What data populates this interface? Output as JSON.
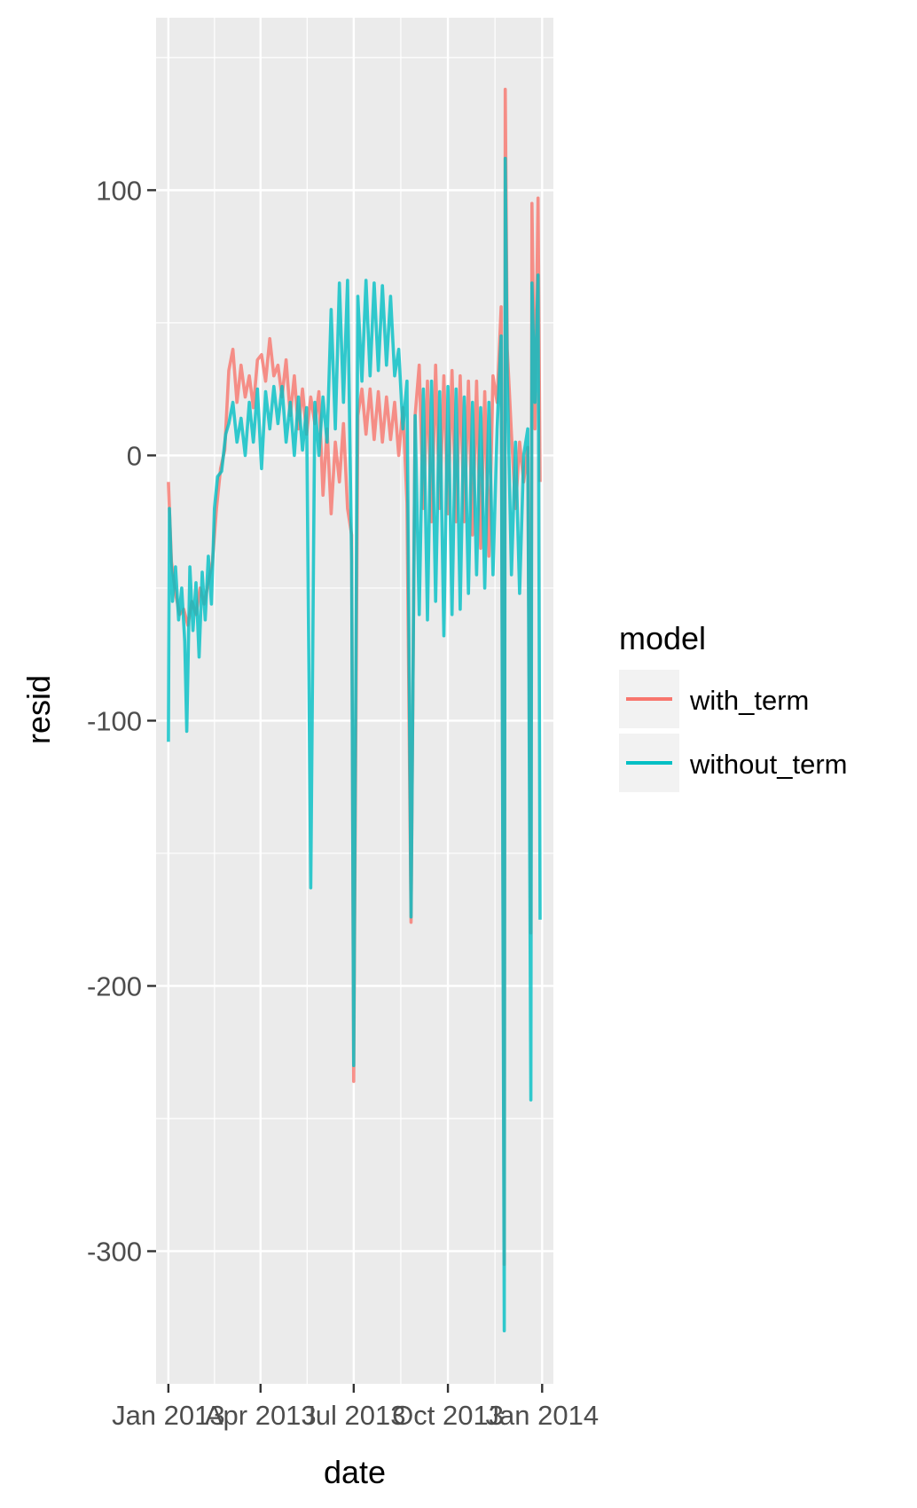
{
  "chart_data": {
    "type": "line",
    "xlabel": "date",
    "ylabel": "resid",
    "x_tick_labels": [
      "Jan 2013",
      "Apr 2013",
      "Jul 2013",
      "Oct 2013",
      "Jan 2014"
    ],
    "x_ticks": [
      "2013-01-01",
      "2013-04-01",
      "2013-07-01",
      "2013-10-01",
      "2014-01-01"
    ],
    "xlim": [
      "2012-12-20",
      "2014-01-12"
    ],
    "y_tick_labels": [
      "100",
      "0",
      "-100",
      "-200",
      "-300"
    ],
    "y_ticks": [
      100,
      0,
      -100,
      -200,
      -300
    ],
    "ylim": [
      -350,
      165
    ],
    "grid": true,
    "legend": {
      "title": "model",
      "position": "right"
    },
    "series": [
      {
        "name": "with_term",
        "color": "#F8766D",
        "points": [
          [
            "2013-01-01",
            -10
          ],
          [
            "2013-01-04",
            -40
          ],
          [
            "2013-01-08",
            -52
          ],
          [
            "2013-01-12",
            -60
          ],
          [
            "2013-01-16",
            -58
          ],
          [
            "2013-01-20",
            -64
          ],
          [
            "2013-01-24",
            -55
          ],
          [
            "2013-01-28",
            -60
          ],
          [
            "2013-02-01",
            -50
          ],
          [
            "2013-02-05",
            -56
          ],
          [
            "2013-02-09",
            -48
          ],
          [
            "2013-02-13",
            -40
          ],
          [
            "2013-02-17",
            -20
          ],
          [
            "2013-02-21",
            -5
          ],
          [
            "2013-02-25",
            2
          ],
          [
            "2013-03-01",
            32
          ],
          [
            "2013-03-05",
            40
          ],
          [
            "2013-03-09",
            20
          ],
          [
            "2013-03-13",
            34
          ],
          [
            "2013-03-17",
            22
          ],
          [
            "2013-03-21",
            30
          ],
          [
            "2013-03-25",
            18
          ],
          [
            "2013-03-29",
            36
          ],
          [
            "2013-04-02",
            38
          ],
          [
            "2013-04-06",
            28
          ],
          [
            "2013-04-10",
            44
          ],
          [
            "2013-04-14",
            30
          ],
          [
            "2013-04-18",
            34
          ],
          [
            "2013-04-22",
            22
          ],
          [
            "2013-04-26",
            36
          ],
          [
            "2013-04-30",
            15
          ],
          [
            "2013-05-04",
            30
          ],
          [
            "2013-05-08",
            10
          ],
          [
            "2013-05-12",
            25
          ],
          [
            "2013-05-16",
            8
          ],
          [
            "2013-05-20",
            22
          ],
          [
            "2013-05-24",
            12
          ],
          [
            "2013-05-28",
            24
          ],
          [
            "2013-06-01",
            -15
          ],
          [
            "2013-06-05",
            10
          ],
          [
            "2013-06-09",
            -22
          ],
          [
            "2013-06-13",
            5
          ],
          [
            "2013-06-17",
            -10
          ],
          [
            "2013-06-21",
            12
          ],
          [
            "2013-06-25",
            -20
          ],
          [
            "2013-06-29",
            -30
          ],
          [
            "2013-07-01",
            -236
          ],
          [
            "2013-07-05",
            15
          ],
          [
            "2013-07-09",
            25
          ],
          [
            "2013-07-13",
            8
          ],
          [
            "2013-07-17",
            25
          ],
          [
            "2013-07-21",
            6
          ],
          [
            "2013-07-25",
            24
          ],
          [
            "2013-07-29",
            5
          ],
          [
            "2013-08-02",
            22
          ],
          [
            "2013-08-06",
            6
          ],
          [
            "2013-08-10",
            20
          ],
          [
            "2013-08-14",
            0
          ],
          [
            "2013-08-18",
            18
          ],
          [
            "2013-08-22",
            -18
          ],
          [
            "2013-08-26",
            -176
          ],
          [
            "2013-08-30",
            15
          ],
          [
            "2013-09-03",
            34
          ],
          [
            "2013-09-07",
            -20
          ],
          [
            "2013-09-11",
            28
          ],
          [
            "2013-09-15",
            -25
          ],
          [
            "2013-09-19",
            34
          ],
          [
            "2013-09-23",
            -20
          ],
          [
            "2013-09-27",
            30
          ],
          [
            "2013-10-01",
            -22
          ],
          [
            "2013-10-05",
            32
          ],
          [
            "2013-10-09",
            -25
          ],
          [
            "2013-10-13",
            30
          ],
          [
            "2013-10-17",
            -25
          ],
          [
            "2013-10-21",
            28
          ],
          [
            "2013-10-25",
            -30
          ],
          [
            "2013-10-29",
            28
          ],
          [
            "2013-11-02",
            -35
          ],
          [
            "2013-11-06",
            24
          ],
          [
            "2013-11-10",
            -38
          ],
          [
            "2013-11-14",
            30
          ],
          [
            "2013-11-18",
            20
          ],
          [
            "2013-11-22",
            56
          ],
          [
            "2013-11-25",
            -305
          ],
          [
            "2013-11-26",
            138
          ],
          [
            "2013-11-28",
            40
          ],
          [
            "2013-12-02",
            8
          ],
          [
            "2013-12-06",
            -20
          ],
          [
            "2013-12-10",
            5
          ],
          [
            "2013-12-14",
            -10
          ],
          [
            "2013-12-18",
            3
          ],
          [
            "2013-12-21",
            -180
          ],
          [
            "2013-12-22",
            95
          ],
          [
            "2013-12-25",
            10
          ],
          [
            "2013-12-28",
            97
          ],
          [
            "2013-12-30",
            -10
          ]
        ]
      },
      {
        "name": "without_term",
        "color": "#00BFC4",
        "points": [
          [
            "2013-01-01",
            -108
          ],
          [
            "2013-01-02",
            -20
          ],
          [
            "2013-01-05",
            -55
          ],
          [
            "2013-01-08",
            -42
          ],
          [
            "2013-01-11",
            -62
          ],
          [
            "2013-01-14",
            -50
          ],
          [
            "2013-01-17",
            -70
          ],
          [
            "2013-01-19",
            -104
          ],
          [
            "2013-01-22",
            -42
          ],
          [
            "2013-01-25",
            -66
          ],
          [
            "2013-01-28",
            -48
          ],
          [
            "2013-01-31",
            -76
          ],
          [
            "2013-02-03",
            -44
          ],
          [
            "2013-02-06",
            -62
          ],
          [
            "2013-02-09",
            -38
          ],
          [
            "2013-02-12",
            -56
          ],
          [
            "2013-02-15",
            -20
          ],
          [
            "2013-02-18",
            -8
          ],
          [
            "2013-02-22",
            -6
          ],
          [
            "2013-02-26",
            8
          ],
          [
            "2013-03-01",
            12
          ],
          [
            "2013-03-05",
            20
          ],
          [
            "2013-03-09",
            5
          ],
          [
            "2013-03-13",
            14
          ],
          [
            "2013-03-17",
            0
          ],
          [
            "2013-03-21",
            20
          ],
          [
            "2013-03-25",
            5
          ],
          [
            "2013-03-29",
            25
          ],
          [
            "2013-04-02",
            -5
          ],
          [
            "2013-04-06",
            24
          ],
          [
            "2013-04-10",
            10
          ],
          [
            "2013-04-14",
            26
          ],
          [
            "2013-04-18",
            12
          ],
          [
            "2013-04-22",
            26
          ],
          [
            "2013-04-26",
            5
          ],
          [
            "2013-04-30",
            20
          ],
          [
            "2013-05-04",
            0
          ],
          [
            "2013-05-08",
            22
          ],
          [
            "2013-05-12",
            2
          ],
          [
            "2013-05-16",
            18
          ],
          [
            "2013-05-20",
            -163
          ],
          [
            "2013-05-24",
            20
          ],
          [
            "2013-05-28",
            0
          ],
          [
            "2013-06-01",
            22
          ],
          [
            "2013-06-05",
            5
          ],
          [
            "2013-06-09",
            55
          ],
          [
            "2013-06-13",
            10
          ],
          [
            "2013-06-17",
            65
          ],
          [
            "2013-06-21",
            20
          ],
          [
            "2013-06-25",
            66
          ],
          [
            "2013-06-29",
            -40
          ],
          [
            "2013-07-01",
            -230
          ],
          [
            "2013-07-05",
            60
          ],
          [
            "2013-07-09",
            28
          ],
          [
            "2013-07-13",
            66
          ],
          [
            "2013-07-17",
            30
          ],
          [
            "2013-07-21",
            65
          ],
          [
            "2013-07-25",
            32
          ],
          [
            "2013-07-29",
            64
          ],
          [
            "2013-08-02",
            34
          ],
          [
            "2013-08-06",
            60
          ],
          [
            "2013-08-10",
            30
          ],
          [
            "2013-08-14",
            40
          ],
          [
            "2013-08-18",
            10
          ],
          [
            "2013-08-22",
            28
          ],
          [
            "2013-08-26",
            -174
          ],
          [
            "2013-08-30",
            15
          ],
          [
            "2013-09-03",
            -60
          ],
          [
            "2013-09-07",
            25
          ],
          [
            "2013-09-11",
            -62
          ],
          [
            "2013-09-15",
            28
          ],
          [
            "2013-09-19",
            -55
          ],
          [
            "2013-09-23",
            24
          ],
          [
            "2013-09-27",
            -68
          ],
          [
            "2013-10-01",
            26
          ],
          [
            "2013-10-05",
            -60
          ],
          [
            "2013-10-09",
            25
          ],
          [
            "2013-10-13",
            -58
          ],
          [
            "2013-10-17",
            22
          ],
          [
            "2013-10-21",
            -52
          ],
          [
            "2013-10-25",
            20
          ],
          [
            "2013-10-29",
            -45
          ],
          [
            "2013-11-02",
            18
          ],
          [
            "2013-11-06",
            -50
          ],
          [
            "2013-11-10",
            20
          ],
          [
            "2013-11-14",
            -45
          ],
          [
            "2013-11-18",
            10
          ],
          [
            "2013-11-22",
            45
          ],
          [
            "2013-11-25",
            -330
          ],
          [
            "2013-11-26",
            112
          ],
          [
            "2013-11-28",
            30
          ],
          [
            "2013-12-02",
            -45
          ],
          [
            "2013-12-06",
            5
          ],
          [
            "2013-12-10",
            -52
          ],
          [
            "2013-12-14",
            0
          ],
          [
            "2013-12-18",
            10
          ],
          [
            "2013-12-21",
            -243
          ],
          [
            "2013-12-22",
            65
          ],
          [
            "2013-12-25",
            20
          ],
          [
            "2013-12-28",
            68
          ],
          [
            "2013-12-30",
            -175
          ]
        ]
      }
    ]
  }
}
